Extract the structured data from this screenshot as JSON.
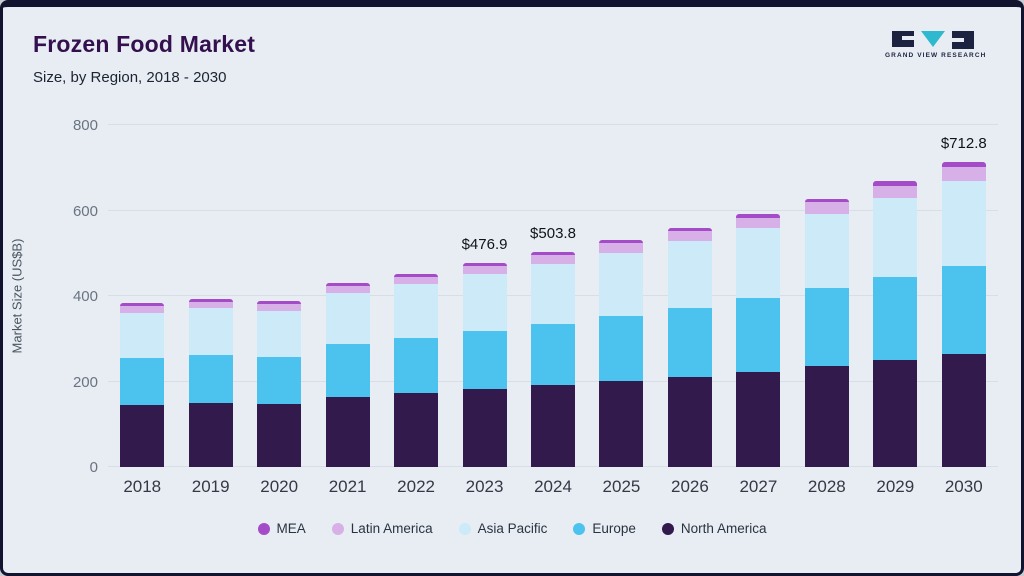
{
  "header": {
    "title": "Frozen Food Market",
    "subtitle": "Size, by Region, 2018 - 2030",
    "logo_text": "GRAND VIEW RESEARCH"
  },
  "chart_data": {
    "type": "bar",
    "stacked": true,
    "title": "Frozen Food Market Size, by Region, 2018 - 2030",
    "xlabel": "",
    "ylabel": "Market Size (US$B)",
    "ylim": [
      0,
      800
    ],
    "yticks": [
      0,
      200,
      400,
      600,
      800
    ],
    "grid": true,
    "legend_position": "bottom",
    "categories": [
      "2018",
      "2019",
      "2020",
      "2021",
      "2022",
      "2023",
      "2024",
      "2025",
      "2026",
      "2027",
      "2028",
      "2029",
      "2030"
    ],
    "series": [
      {
        "name": "North America",
        "color": "#321a4d",
        "values": [
          146,
          150,
          148,
          163,
          172,
          182,
          192,
          201,
          210,
          222,
          236,
          250,
          265
        ]
      },
      {
        "name": "Europe",
        "color": "#4cc2ef",
        "values": [
          110,
          113,
          110,
          124,
          130,
          136,
          143,
          152,
          163,
          173,
          183,
          194,
          206
        ]
      },
      {
        "name": "Asia Pacific",
        "color": "#cdeaf9",
        "values": [
          105,
          108,
          107,
          120,
          126,
          133,
          141,
          148,
          156,
          164,
          174,
          186,
          198
        ]
      },
      {
        "name": "Latin America",
        "color": "#d8b0e8",
        "values": [
          15,
          15,
          16,
          17,
          16,
          19,
          21,
          22,
          23,
          24,
          26,
          28,
          32
        ]
      },
      {
        "name": "MEA",
        "color": "#a44bc8",
        "values": [
          7,
          7,
          7,
          7,
          7,
          7,
          7,
          7,
          8,
          9,
          9,
          10,
          12
        ]
      }
    ],
    "totals": [
      383,
      393,
      388,
      431,
      451,
      476.9,
      503.8,
      530,
      560,
      592,
      628,
      668,
      712.8
    ],
    "annotations": [
      {
        "category": "2023",
        "text": "$476.9"
      },
      {
        "category": "2024",
        "text": "$503.8"
      },
      {
        "category": "2030",
        "text": "$712.8"
      }
    ],
    "legend": [
      {
        "label": "MEA",
        "color": "#a44bc8"
      },
      {
        "label": "Latin America",
        "color": "#d8b0e8"
      },
      {
        "label": "Asia Pacific",
        "color": "#cdeaf9"
      },
      {
        "label": "Europe",
        "color": "#4cc2ef"
      },
      {
        "label": "North America",
        "color": "#321a4d"
      }
    ]
  }
}
